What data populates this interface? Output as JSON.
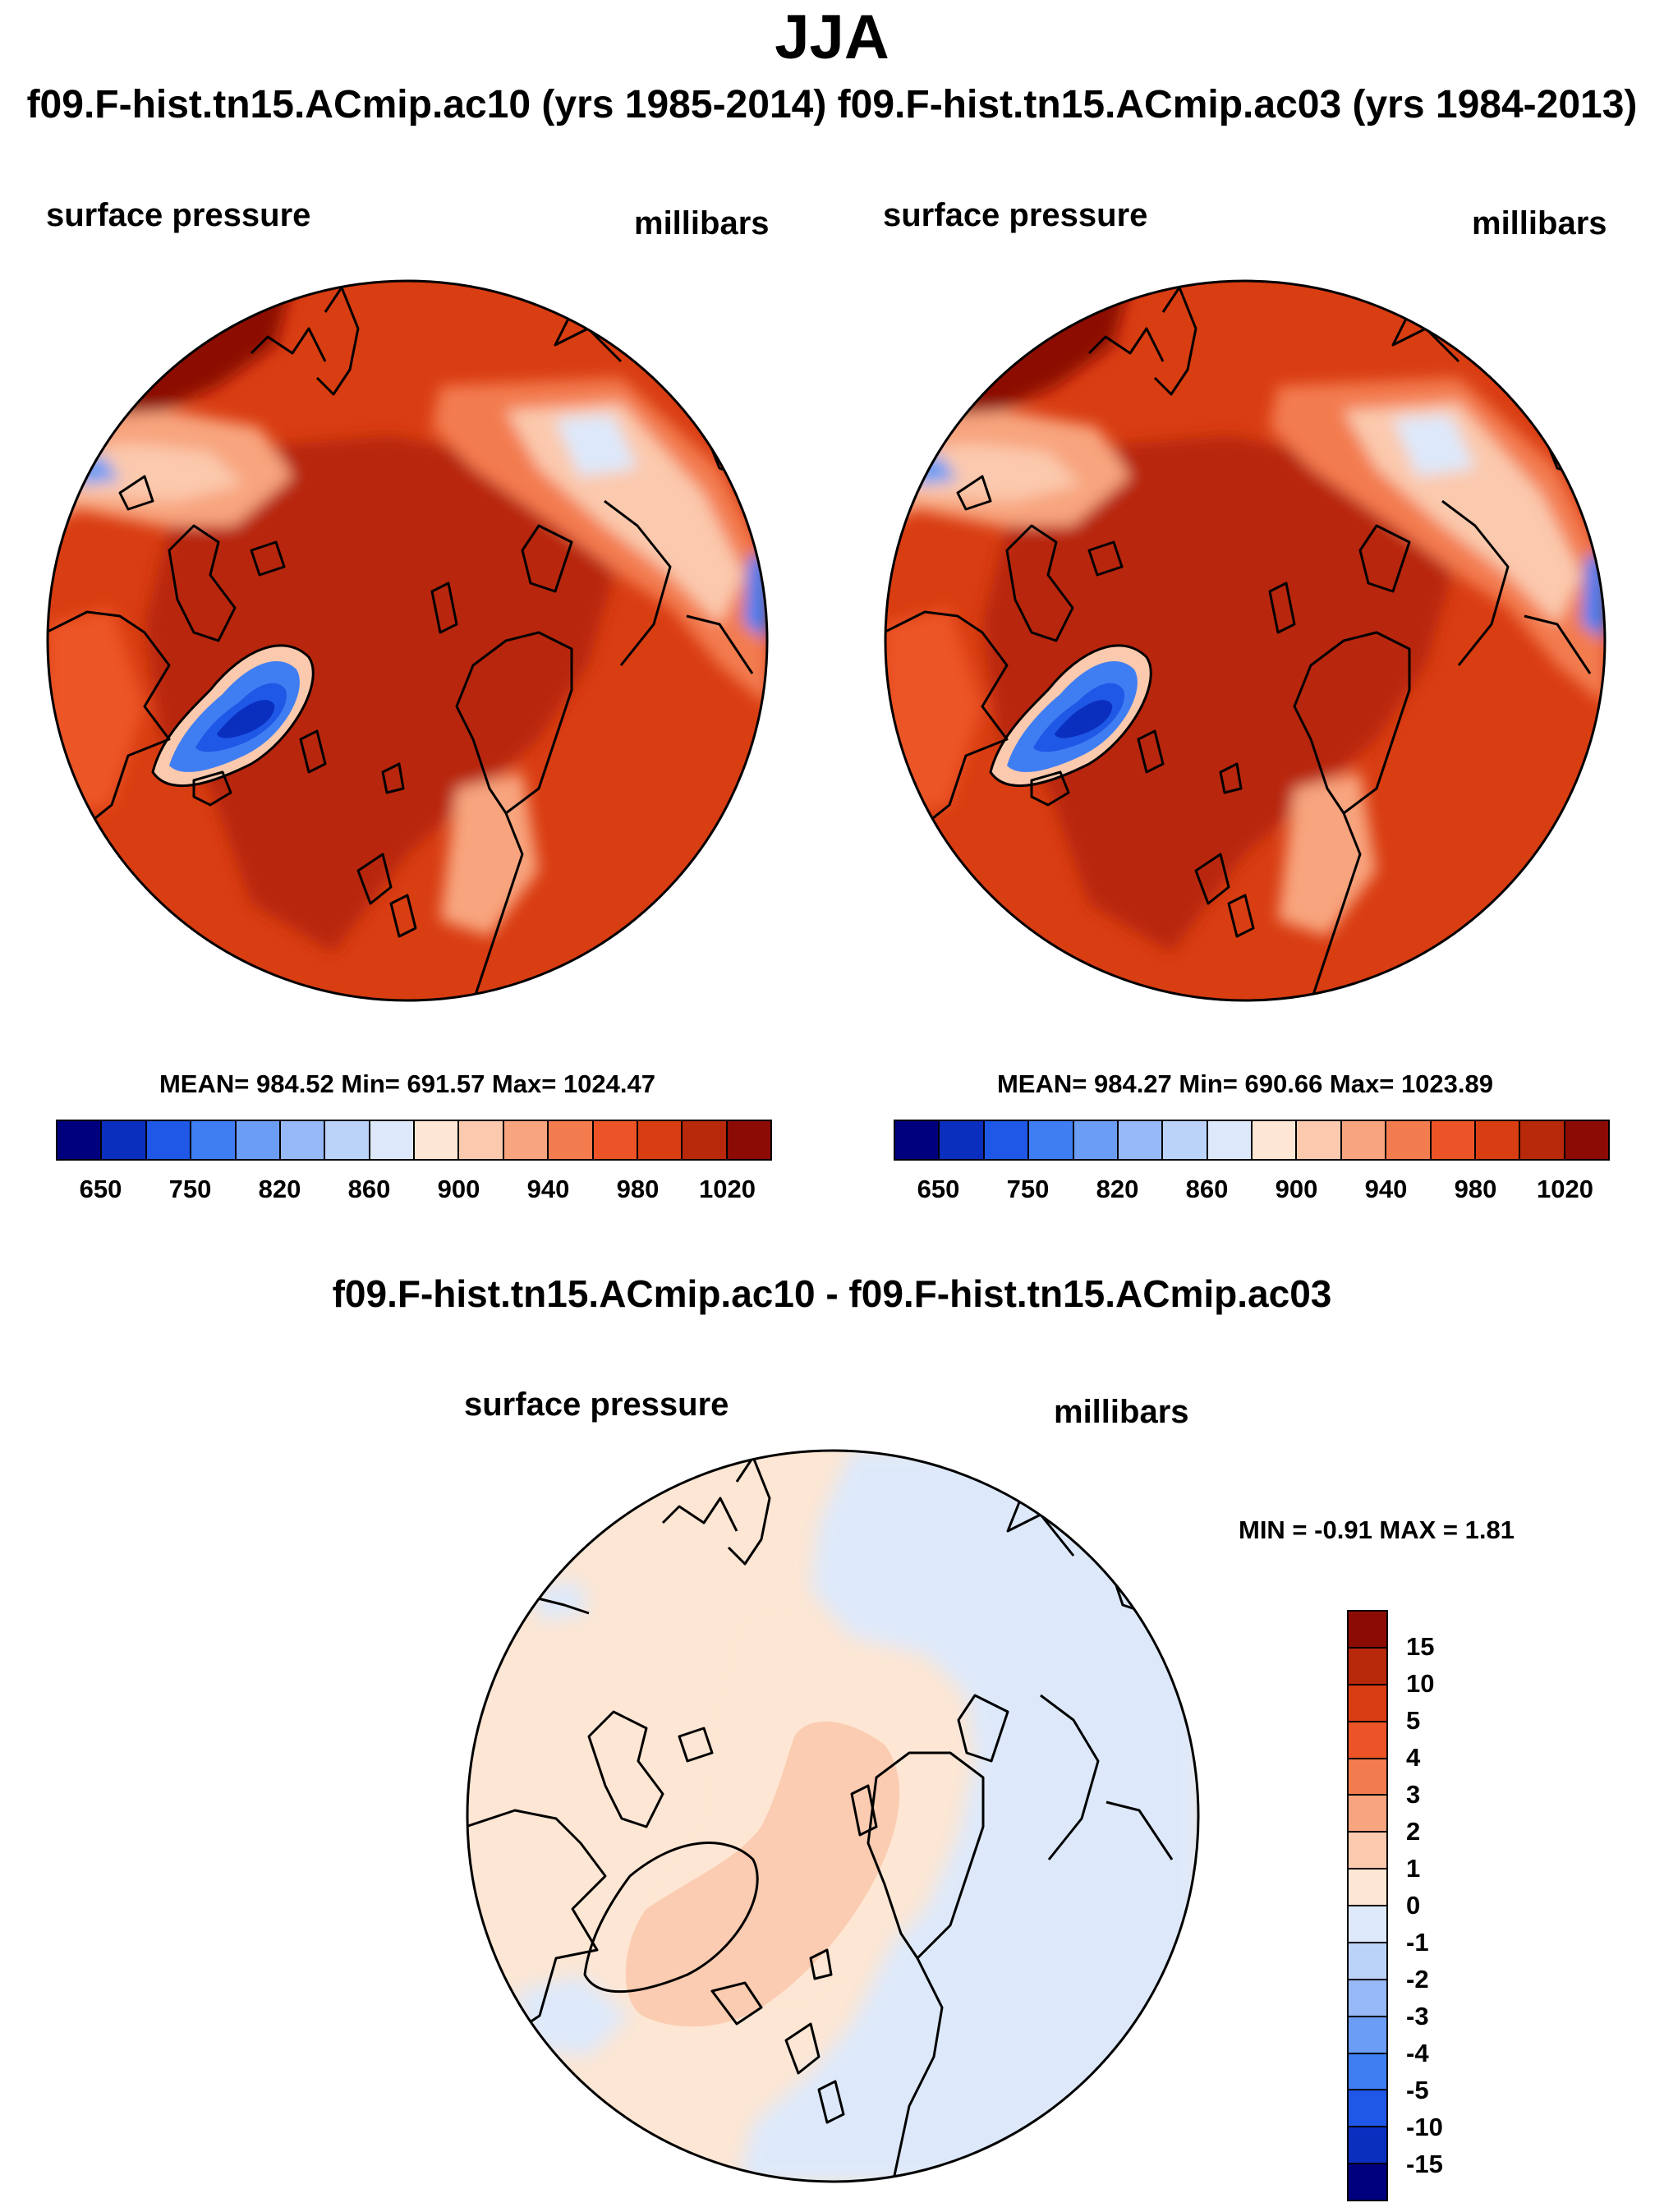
{
  "title": "JJA",
  "header": "f09.F-hist.tn15.ACmip.ac10 (yrs 1985-2014) f09.F-hist.tn15.ACmip.ac03 (yrs 1984-2013)",
  "panels": [
    {
      "variable": "surface pressure",
      "units": "millibars",
      "stats": "MEAN= 984.52  Min= 691.57  Max= 1024.47"
    },
    {
      "variable": "surface pressure",
      "units": "millibars",
      "stats": "MEAN= 984.27  Min= 690.66  Max= 1023.89"
    }
  ],
  "colorbar": {
    "colors": [
      "#00007f",
      "#0a2fbf",
      "#1f57e6",
      "#3f7ef2",
      "#6b9df5",
      "#97b9f7",
      "#bcd3f9",
      "#dde9fb",
      "#fde6d3",
      "#fbc9ad",
      "#f8a47e",
      "#f37c4f",
      "#ec5427",
      "#d93d12",
      "#b8280a",
      "#8c0b04"
    ],
    "labels": [
      "650",
      "750",
      "820",
      "860",
      "900",
      "940",
      "980",
      "1020"
    ]
  },
  "diff": {
    "title": "f09.F-hist.tn15.ACmip.ac10 - f09.F-hist.tn15.ACmip.ac03",
    "variable": "surface pressure",
    "units": "millibars",
    "minmax": "MIN =  -0.91 MAX =   1.81",
    "colors": [
      "#8c0b04",
      "#b8280a",
      "#d93d12",
      "#ec5427",
      "#f37c4f",
      "#f8a47e",
      "#fbc9ad",
      "#fde6d3",
      "#dde9fb",
      "#bcd3f9",
      "#97b9f7",
      "#6b9df5",
      "#3f7ef2",
      "#1f57e6",
      "#0a2fbf",
      "#00007f"
    ],
    "labels": [
      "15",
      "10",
      "5",
      "4",
      "3",
      "2",
      "1",
      "0",
      "-1",
      "-2",
      "-3",
      "-4",
      "-5",
      "-10",
      "-15"
    ]
  }
}
